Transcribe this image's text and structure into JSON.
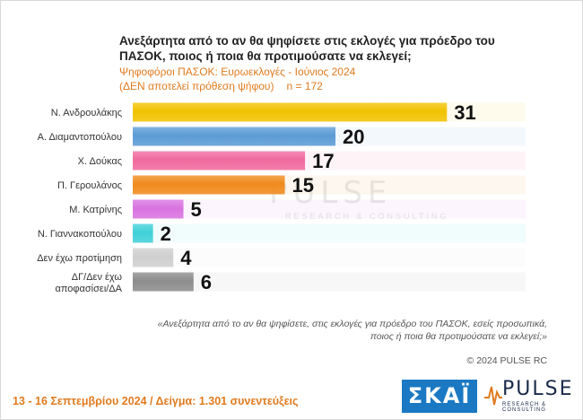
{
  "title": "Ανεξάρτητα από το αν θα ψηφίσετε στις εκλογές για πρόεδρο του ΠΑΣΟΚ, ποιος ή ποια θα προτιμούσατε να εκλεγεί;",
  "subtitle_line1": "Ψηφοφόροι ΠΑΣΟΚ: Ευρωεκλογές - Ιούνιος 2024",
  "subtitle_line2": "(ΔΕΝ αποτελεί πρόθεση ψήφου)",
  "sample_n": "n = 172",
  "question_note": "«Ανεξάρτητα από το αν θα ψηφίσετε, στις εκλογές για πρόεδρο του ΠΑΣΟΚ, εσείς προσωπικά, ποιος ή ποια θα προτιμούσατε να εκλεγεί;»",
  "copyright": "© 2024 PULSE RC",
  "footer": "13 - 16 Σεπτεμβρίου 2024  /  Δείγμα:  1.301 συνεντεύξεις",
  "logos": {
    "skai": "ΣΚΑΪ",
    "pulse": "PULSE",
    "pulse_sub": "RESEARCH & CONSULTING"
  },
  "watermark": {
    "text": "PULSE",
    "sub": "RESEARCH & CONSULTING"
  },
  "chart_data": {
    "type": "bar",
    "orientation": "horizontal",
    "categories": [
      "Ν. Ανδρουλάκης",
      "Α. Διαμαντοπούλου",
      "Χ. Δούκας",
      "Π. Γερουλάνος",
      "Μ. Κατρίνης",
      "Ν. Γιαννακοπούλου",
      "Δεν έχω προτίμηση",
      "ΔΓ/Δεν έχω αποφασίσει/ΔΑ"
    ],
    "values": [
      31,
      20,
      17,
      15,
      5,
      2,
      4,
      6
    ],
    "colors": [
      "#f2c200",
      "#5b9bd5",
      "#f06a9e",
      "#f08a1c",
      "#d872e0",
      "#3fd0d8",
      "#cfcfcf",
      "#8c8c8c"
    ],
    "xlim": [
      0,
      40
    ]
  }
}
